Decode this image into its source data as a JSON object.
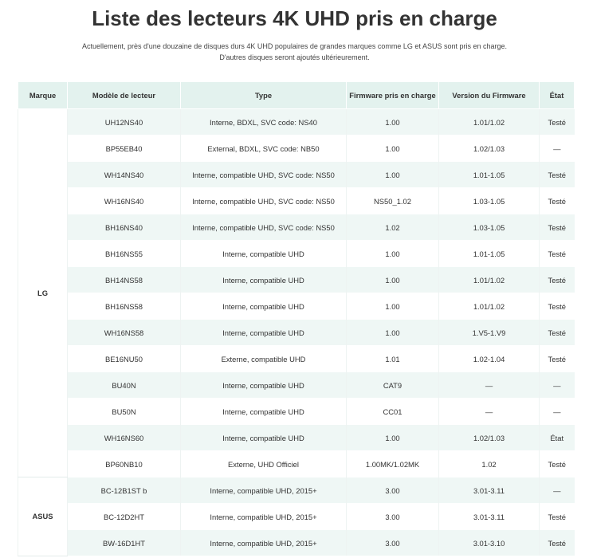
{
  "header": {
    "title": "Liste des lecteurs 4K UHD pris en charge",
    "subtitle": [
      "Actuellement, près d'une douzaine de disques durs 4K UHD populaires de grandes marques comme LG et ASUS sont pris en charge.",
      "D'autres disques seront ajoutés ultérieurement."
    ]
  },
  "table": {
    "columns": [
      "Marque",
      "Modèle de lecteur",
      "Type",
      "Firmware pris en charge",
      "Version du Firmware",
      "État"
    ],
    "groups": [
      {
        "brand": "LG",
        "rows": [
          [
            "UH12NS40",
            "Interne, BDXL, SVC code: NS40",
            "1.00",
            "1.01/1.02",
            "Testé"
          ],
          [
            "BP55EB40",
            "External, BDXL, SVC code: NB50",
            "1.00",
            "1.02/1.03",
            "—"
          ],
          [
            "WH14NS40",
            "Interne, compatible UHD, SVC code: NS50",
            "1.00",
            "1.01-1.05",
            "Testé"
          ],
          [
            "WH16NS40",
            "Interne, compatible UHD, SVC code: NS50",
            "NS50_1.02",
            "1.03-1.05",
            "Testé"
          ],
          [
            "BH16NS40",
            "Interne, compatible UHD, SVC code: NS50",
            "1.02",
            "1.03-1.05",
            "Testé"
          ],
          [
            "BH16NS55",
            "Interne, compatible UHD",
            "1.00",
            "1.01-1.05",
            "Testé"
          ],
          [
            "BH14NS58",
            "Interne, compatible UHD",
            "1.00",
            "1.01/1.02",
            "Testé"
          ],
          [
            "BH16NS58",
            "Interne, compatible UHD",
            "1.00",
            "1.01/1.02",
            "Testé"
          ],
          [
            "WH16NS58",
            "Interne, compatible UHD",
            "1.00",
            "1.V5-1.V9",
            "Testé"
          ],
          [
            "BE16NU50",
            "Externe, compatible UHD",
            "1.01",
            "1.02-1.04",
            "Testé"
          ],
          [
            "BU40N",
            "Interne, compatible UHD",
            "CAT9",
            "—",
            "—"
          ],
          [
            "BU50N",
            "Interne, compatible UHD",
            "CC01",
            "—",
            "—"
          ],
          [
            "WH16NS60",
            "Interne, compatible UHD",
            "1.00",
            "1.02/1.03",
            "État"
          ],
          [
            "BP60NB10",
            "Externe, UHD Officiel",
            "1.00MK/1.02MK",
            "1.02",
            "Testé"
          ]
        ]
      },
      {
        "brand": "ASUS",
        "rows": [
          [
            "BC-12B1ST b",
            "Interne, compatible UHD, 2015+",
            "3.00",
            "3.01-3.11",
            "—"
          ],
          [
            "BC-12D2HT",
            "Interne, compatible UHD, 2015+",
            "3.00",
            "3.01-3.11",
            "Testé"
          ],
          [
            "BW-16D1HT",
            "Interne, compatible UHD, 2015+",
            "3.00",
            "3.01-3.10",
            "Testé"
          ]
        ]
      }
    ]
  }
}
